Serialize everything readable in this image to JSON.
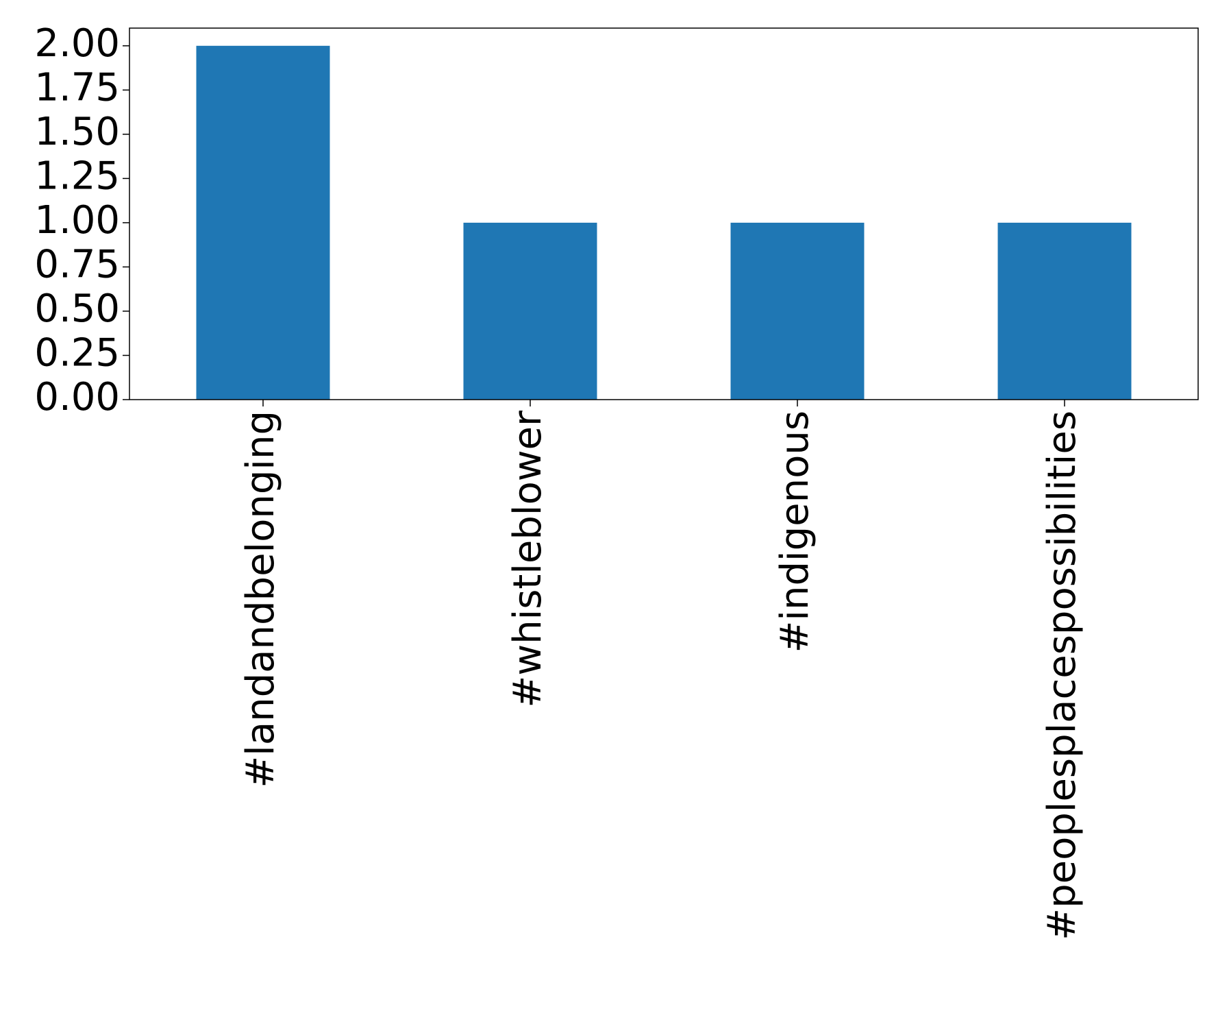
{
  "chart_data": {
    "type": "bar",
    "categories": [
      "#landandbelonging",
      "#whistleblower",
      "#indigenous",
      "#peoplesplacespossibilities"
    ],
    "values": [
      2,
      1,
      1,
      1
    ],
    "color": "#1f77b4",
    "ylim": [
      0,
      2.1
    ],
    "yticks": [
      {
        "value": 0,
        "label": "0.00"
      },
      {
        "value": 0.25,
        "label": "0.25"
      },
      {
        "value": 0.5,
        "label": "0.50"
      },
      {
        "value": 0.75,
        "label": "0.75"
      },
      {
        "value": 1,
        "label": "1.00"
      },
      {
        "value": 1.25,
        "label": "1.25"
      },
      {
        "value": 1.5,
        "label": "1.50"
      },
      {
        "value": 1.75,
        "label": "1.75"
      },
      {
        "value": 2,
        "label": "2.00"
      }
    ],
    "grid": false
  }
}
